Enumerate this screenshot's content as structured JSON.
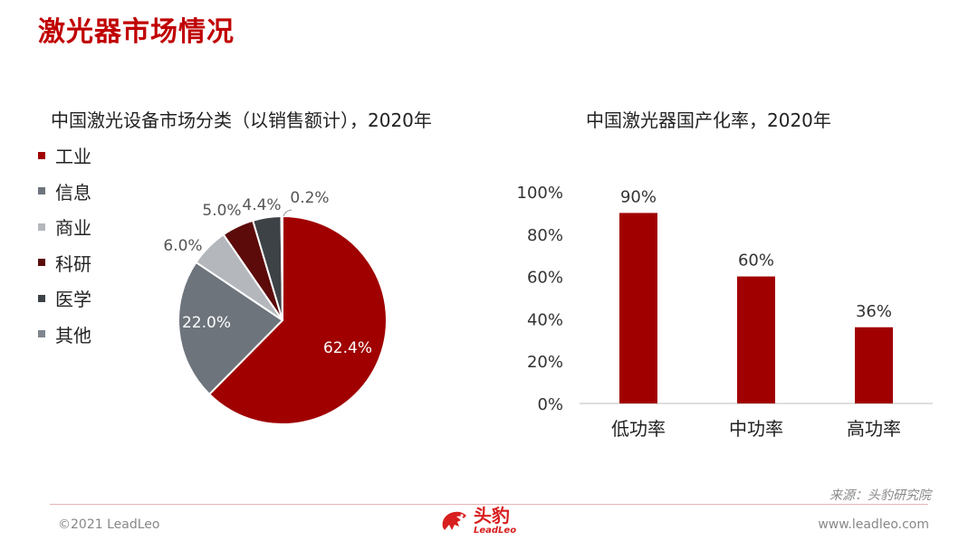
{
  "page": {
    "title": "激光器市场情况",
    "source": "来源：头豹研究院",
    "copyright": "©2021 LeadLeo",
    "website": "www.leadleo.com",
    "logo": {
      "cn": "头豹",
      "en": "LeadLeo"
    }
  },
  "colors": {
    "accent": "#c00000",
    "industrial": "#a00000",
    "information": "#6d747c",
    "commercial": "#b4b8bc",
    "research": "#5c0a0a",
    "medical": "#3d4247",
    "other": "#7e868e",
    "bar": "#a00000"
  },
  "chart_data": [
    {
      "type": "pie",
      "title": "中国激光设备市场分类（以销售额计），2020年",
      "legend_position": "left",
      "series": [
        {
          "name": "工业",
          "value": 62.4,
          "label": "62.4%"
        },
        {
          "name": "信息",
          "value": 22.0,
          "label": "22.0%"
        },
        {
          "name": "商业",
          "value": 6.0,
          "label": "6.0%"
        },
        {
          "name": "科研",
          "value": 5.0,
          "label": "5.0%"
        },
        {
          "name": "医学",
          "value": 4.4,
          "label": "4.4%"
        },
        {
          "name": "其他",
          "value": 0.2,
          "label": "0.2%"
        }
      ]
    },
    {
      "type": "bar",
      "title": "中国激光器国产化率，2020年",
      "categories": [
        "低功率",
        "中功率",
        "高功率"
      ],
      "values": [
        90,
        60,
        36
      ],
      "value_labels": [
        "90%",
        "60%",
        "36%"
      ],
      "ylim": [
        0,
        100
      ],
      "yticks": [
        0,
        20,
        40,
        60,
        80,
        100
      ],
      "ytick_labels": [
        "0%",
        "20%",
        "40%",
        "60%",
        "80%",
        "100%"
      ],
      "grid": false
    }
  ]
}
